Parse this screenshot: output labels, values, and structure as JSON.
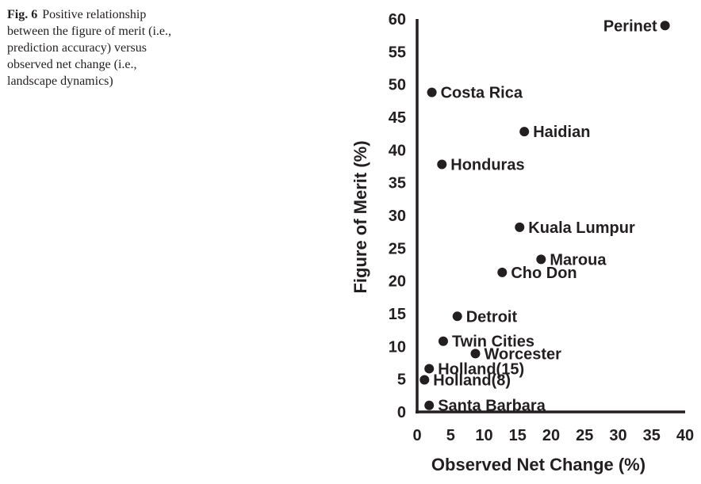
{
  "caption": {
    "label": "Fig. 6",
    "lines": [
      "Positive relationship",
      "between the figure of merit (i.e.,",
      "prediction accuracy) versus",
      "observed net change (i.e.,",
      "landscape dynamics)"
    ]
  },
  "chart_data": {
    "type": "scatter",
    "title": "",
    "xlabel": "Observed Net Change (%)",
    "ylabel": "Figure of Merit (%)",
    "xlim": [
      0,
      40
    ],
    "ylim": [
      0,
      60
    ],
    "xticks": [
      0,
      5,
      10,
      15,
      20,
      25,
      30,
      35,
      40
    ],
    "yticks": [
      0,
      5,
      10,
      15,
      20,
      25,
      30,
      35,
      40,
      45,
      50,
      55,
      60
    ],
    "grid": false,
    "legend": "none",
    "point_color": "#231f20",
    "points": [
      {
        "label": "Perinet",
        "x": 37.0,
        "y": 59.0,
        "label_side": "left"
      },
      {
        "label": "Costa Rica",
        "x": 2.2,
        "y": 48.8,
        "label_side": "right"
      },
      {
        "label": "Haidian",
        "x": 16.0,
        "y": 42.8,
        "label_side": "right"
      },
      {
        "label": "Honduras",
        "x": 3.7,
        "y": 37.8,
        "label_side": "right"
      },
      {
        "label": "Kuala Lumpur",
        "x": 15.3,
        "y": 28.2,
        "label_side": "right"
      },
      {
        "label": "Maroua",
        "x": 18.5,
        "y": 23.3,
        "label_side": "right"
      },
      {
        "label": "Cho Don",
        "x": 12.7,
        "y": 21.3,
        "label_side": "right"
      },
      {
        "label": "Detroit",
        "x": 6.0,
        "y": 14.6,
        "label_side": "right"
      },
      {
        "label": "Twin Cities",
        "x": 3.9,
        "y": 10.8,
        "label_side": "right"
      },
      {
        "label": "Worcester",
        "x": 8.7,
        "y": 8.9,
        "label_side": "right"
      },
      {
        "label": "Holland(15)",
        "x": 1.8,
        "y": 6.6,
        "label_side": "right"
      },
      {
        "label": "Holland(8)",
        "x": 1.1,
        "y": 4.9,
        "label_side": "right"
      },
      {
        "label": "Santa Barbara",
        "x": 1.8,
        "y": 1.0,
        "label_side": "right"
      }
    ]
  }
}
